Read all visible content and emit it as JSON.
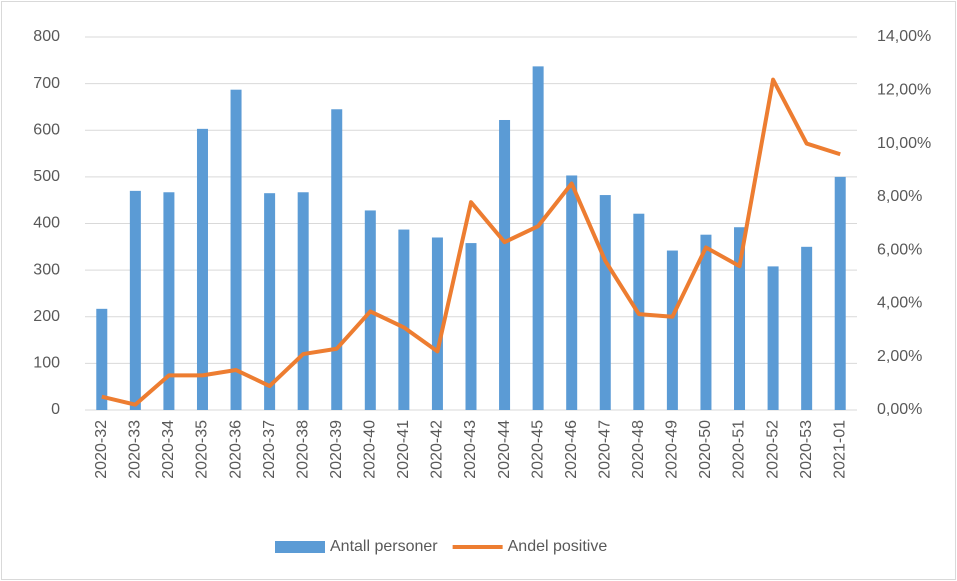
{
  "chart_data": {
    "type": "bar_line",
    "categories": [
      "2020-32",
      "2020-33",
      "2020-34",
      "2020-35",
      "2020-36",
      "2020-37",
      "2020-38",
      "2020-39",
      "2020-40",
      "2020-41",
      "2020-42",
      "2020-43",
      "2020-44",
      "2020-45",
      "2020-46",
      "2020-47",
      "2020-48",
      "2020-49",
      "2020-50",
      "2020-51",
      "2020-52",
      "2020-53",
      "2021-01"
    ],
    "series": [
      {
        "name": "Antall personer",
        "type": "bar",
        "color": "#5b9bd5",
        "values": [
          217,
          470,
          467,
          603,
          687,
          465,
          467,
          645,
          428,
          387,
          370,
          358,
          622,
          737,
          503,
          461,
          421,
          342,
          376,
          392,
          308,
          350,
          500
        ]
      },
      {
        "name": "Andel positive",
        "type": "line",
        "axis": "y2",
        "color": "#ed7d31",
        "values": [
          0.5,
          0.2,
          1.3,
          1.3,
          1.5,
          0.9,
          2.1,
          2.3,
          3.7,
          3.1,
          2.2,
          7.8,
          6.3,
          6.9,
          8.5,
          5.6,
          3.6,
          3.5,
          6.1,
          5.4,
          12.4,
          10.0,
          9.6
        ]
      }
    ],
    "ylim": [
      0,
      800
    ],
    "yticks": [
      0,
      100,
      200,
      300,
      400,
      500,
      600,
      700,
      800
    ],
    "y2lim": [
      0,
      14
    ],
    "y2ticks": [
      {
        "value": 0,
        "label": "0,00%"
      },
      {
        "value": 2,
        "label": "2,00%"
      },
      {
        "value": 4,
        "label": "4,00%"
      },
      {
        "value": 6,
        "label": "6,00%"
      },
      {
        "value": 8,
        "label": "8,00%"
      },
      {
        "value": 10,
        "label": "10,00%"
      },
      {
        "value": 12,
        "label": "12,00%"
      },
      {
        "value": 14,
        "label": "14,00%"
      }
    ],
    "grid": true,
    "legend": "bottom"
  }
}
